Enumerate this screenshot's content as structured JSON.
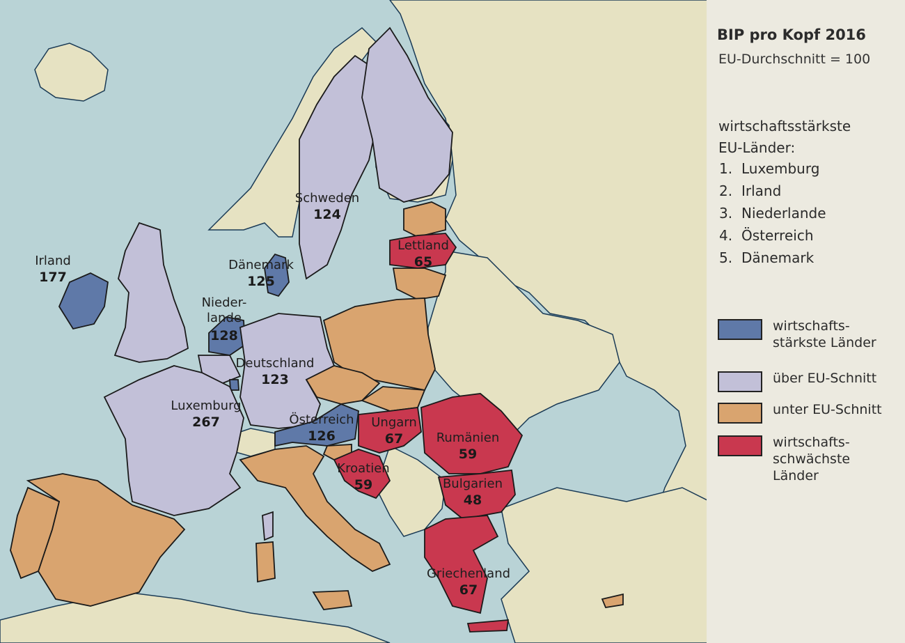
{
  "title": "BIP pro Kopf 2016",
  "subtitle": "EU-Durchschnitt = 100",
  "ranking": {
    "heading_line1": "wirtschaftsstärkste",
    "heading_line2": "EU-Länder:",
    "items": [
      {
        "num": "1.",
        "name": "Luxemburg"
      },
      {
        "num": "2.",
        "name": "Irland"
      },
      {
        "num": "3.",
        "name": "Niederlande"
      },
      {
        "num": "4.",
        "name": "Österreich"
      },
      {
        "num": "5.",
        "name": "Dänemark"
      }
    ]
  },
  "legend": [
    {
      "line1": "wirtschafts-",
      "line2": "stärkste Länder",
      "line3": "",
      "color": "#5f79a8"
    },
    {
      "line1": "über EU-Schnitt",
      "line2": "",
      "line3": "",
      "color": "#c2c0d8"
    },
    {
      "line1": "unter EU-Schnitt",
      "line2": "",
      "line3": "",
      "color": "#d9a46f"
    },
    {
      "line1": "wirtschafts-",
      "line2": "schwächste",
      "line3": "Länder",
      "color": "#c9384f"
    }
  ],
  "colors": {
    "sea": "#b9d3d6",
    "land_other": "#e6e2c2",
    "strong": "#5f79a8",
    "above": "#c2c0d8",
    "below": "#d9a46f",
    "weak": "#c9384f",
    "border": "#1a1a1a"
  },
  "countries": [
    {
      "name": "Irland",
      "value": "177",
      "category": "strong"
    },
    {
      "name": "Schweden",
      "value": "124",
      "category": "above"
    },
    {
      "name": "Dänemark",
      "value": "125",
      "category": "strong"
    },
    {
      "name": "Nieder-",
      "name2": "lande",
      "value": "128",
      "category": "strong"
    },
    {
      "name": "Deutschland",
      "value": "123",
      "category": "above"
    },
    {
      "name": "Luxemburg",
      "value": "267",
      "category": "strong"
    },
    {
      "name": "Österreich",
      "value": "126",
      "category": "strong"
    },
    {
      "name": "Lettland",
      "value": "65",
      "category": "weak"
    },
    {
      "name": "Ungarn",
      "value": "67",
      "category": "weak"
    },
    {
      "name": "Rumänien",
      "value": "59",
      "category": "weak"
    },
    {
      "name": "Kroatien",
      "value": "59",
      "category": "weak"
    },
    {
      "name": "Bulgarien",
      "value": "48",
      "category": "weak"
    },
    {
      "name": "Griechenland",
      "value": "67",
      "category": "weak"
    }
  ]
}
